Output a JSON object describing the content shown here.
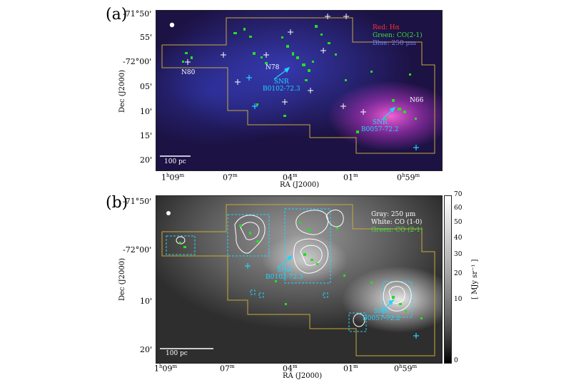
{
  "panel_a": {
    "label": "(a)",
    "legend": {
      "red": "Red: Hα",
      "green": "Green: CO(2-1)",
      "blue": "Blue: 250 μm"
    },
    "regions": [
      "N80",
      "N78",
      "N66"
    ],
    "snr1": [
      "SNR",
      "B0102-72.3"
    ],
    "snr2": [
      "SNR",
      "B0057-72.2"
    ],
    "scalebar": "100 pc",
    "colors": {
      "halpha": "#ff2a2a",
      "co": "#22e020",
      "dust": "#2a3cff",
      "snr": "#22d4ff",
      "contour": "#c8a93a"
    }
  },
  "panel_b": {
    "label": "(b)",
    "legend": {
      "gray": "Gray: 250 μm",
      "white": "White: CO (1-0)",
      "green": "Green: CO (2-1)"
    },
    "snr1": [
      "SNR",
      "B0102-72.3"
    ],
    "snr2": [
      "SNR",
      "B0057-72.2"
    ],
    "scalebar": "100 pc",
    "colorbar": {
      "label": "[ MJy sr⁻¹ ]",
      "ticks": [
        "70",
        "60",
        "50",
        "40",
        "30",
        "20",
        "10",
        "0"
      ]
    }
  },
  "axes": {
    "dec_label": "Dec (J2000)",
    "ra_label": "RA (J2000)",
    "a_dec_ticks": [
      "-71°50'",
      "55'",
      "-72°00'",
      "05'",
      "10'",
      "15'",
      "20'"
    ],
    "b_dec_ticks": [
      "-71°50'",
      "-72°00'",
      "10'",
      "20'"
    ],
    "ra_ticks": [
      {
        "h": "1",
        "hu": "h",
        "m": "09",
        "mu": "m"
      },
      {
        "h": "",
        "hu": "",
        "m": "07",
        "mu": "m"
      },
      {
        "h": "",
        "hu": "",
        "m": "04",
        "mu": "m"
      },
      {
        "h": "",
        "hu": "",
        "m": "01",
        "mu": "m"
      },
      {
        "h": "0",
        "hu": "h",
        "m": "59",
        "mu": "m"
      }
    ]
  }
}
